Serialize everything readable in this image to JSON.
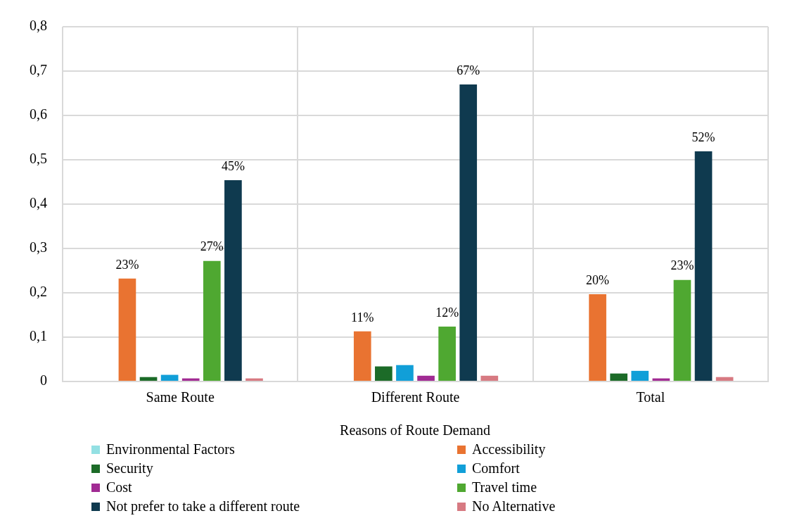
{
  "chart_data": {
    "type": "bar",
    "categories": [
      "Same Route",
      "Different Route",
      "Total"
    ],
    "series": [
      {
        "name": "Environmental Factors",
        "color": "#93e0e3",
        "values": [
          0,
          0,
          0
        ]
      },
      {
        "name": "Accessibility",
        "color": "#e97331",
        "values": [
          0.232,
          0.113,
          0.197
        ],
        "value_labels": [
          "23%",
          "11%",
          "20%"
        ]
      },
      {
        "name": "Security",
        "color": "#1c6b28",
        "values": [
          0.01,
          0.034,
          0.018
        ]
      },
      {
        "name": "Comfort",
        "color": "#119fd8",
        "values": [
          0.015,
          0.037,
          0.024
        ]
      },
      {
        "name": "Cost",
        "color": "#a12b93",
        "values": [
          0.007,
          0.013,
          0.007
        ]
      },
      {
        "name": "Travel time",
        "color": "#4fa831",
        "values": [
          0.272,
          0.124,
          0.229
        ],
        "value_labels": [
          "27%",
          "12%",
          "23%"
        ]
      },
      {
        "name": "Not prefer to take a different route",
        "color": "#0f3a4f",
        "values": [
          0.454,
          0.67,
          0.519
        ],
        "value_labels": [
          "45%",
          "67%",
          "52%"
        ]
      },
      {
        "name": "No Alternative",
        "color": "#d77a82",
        "values": [
          0.007,
          0.013,
          0.01
        ]
      }
    ],
    "ylim": [
      0,
      0.8
    ],
    "yticks": [
      {
        "value": 0,
        "label": "0"
      },
      {
        "value": 0.1,
        "label": "0,1"
      },
      {
        "value": 0.2,
        "label": "0,2"
      },
      {
        "value": 0.3,
        "label": "0,3"
      },
      {
        "value": 0.4,
        "label": "0,4"
      },
      {
        "value": 0.5,
        "label": "0,5"
      },
      {
        "value": 0.6,
        "label": "0,6"
      },
      {
        "value": 0.7,
        "label": "0,7"
      },
      {
        "value": 0.8,
        "label": "0,8"
      }
    ],
    "grid": true,
    "legend": "bottom",
    "legend_title": "Reasons of Route Demand"
  }
}
